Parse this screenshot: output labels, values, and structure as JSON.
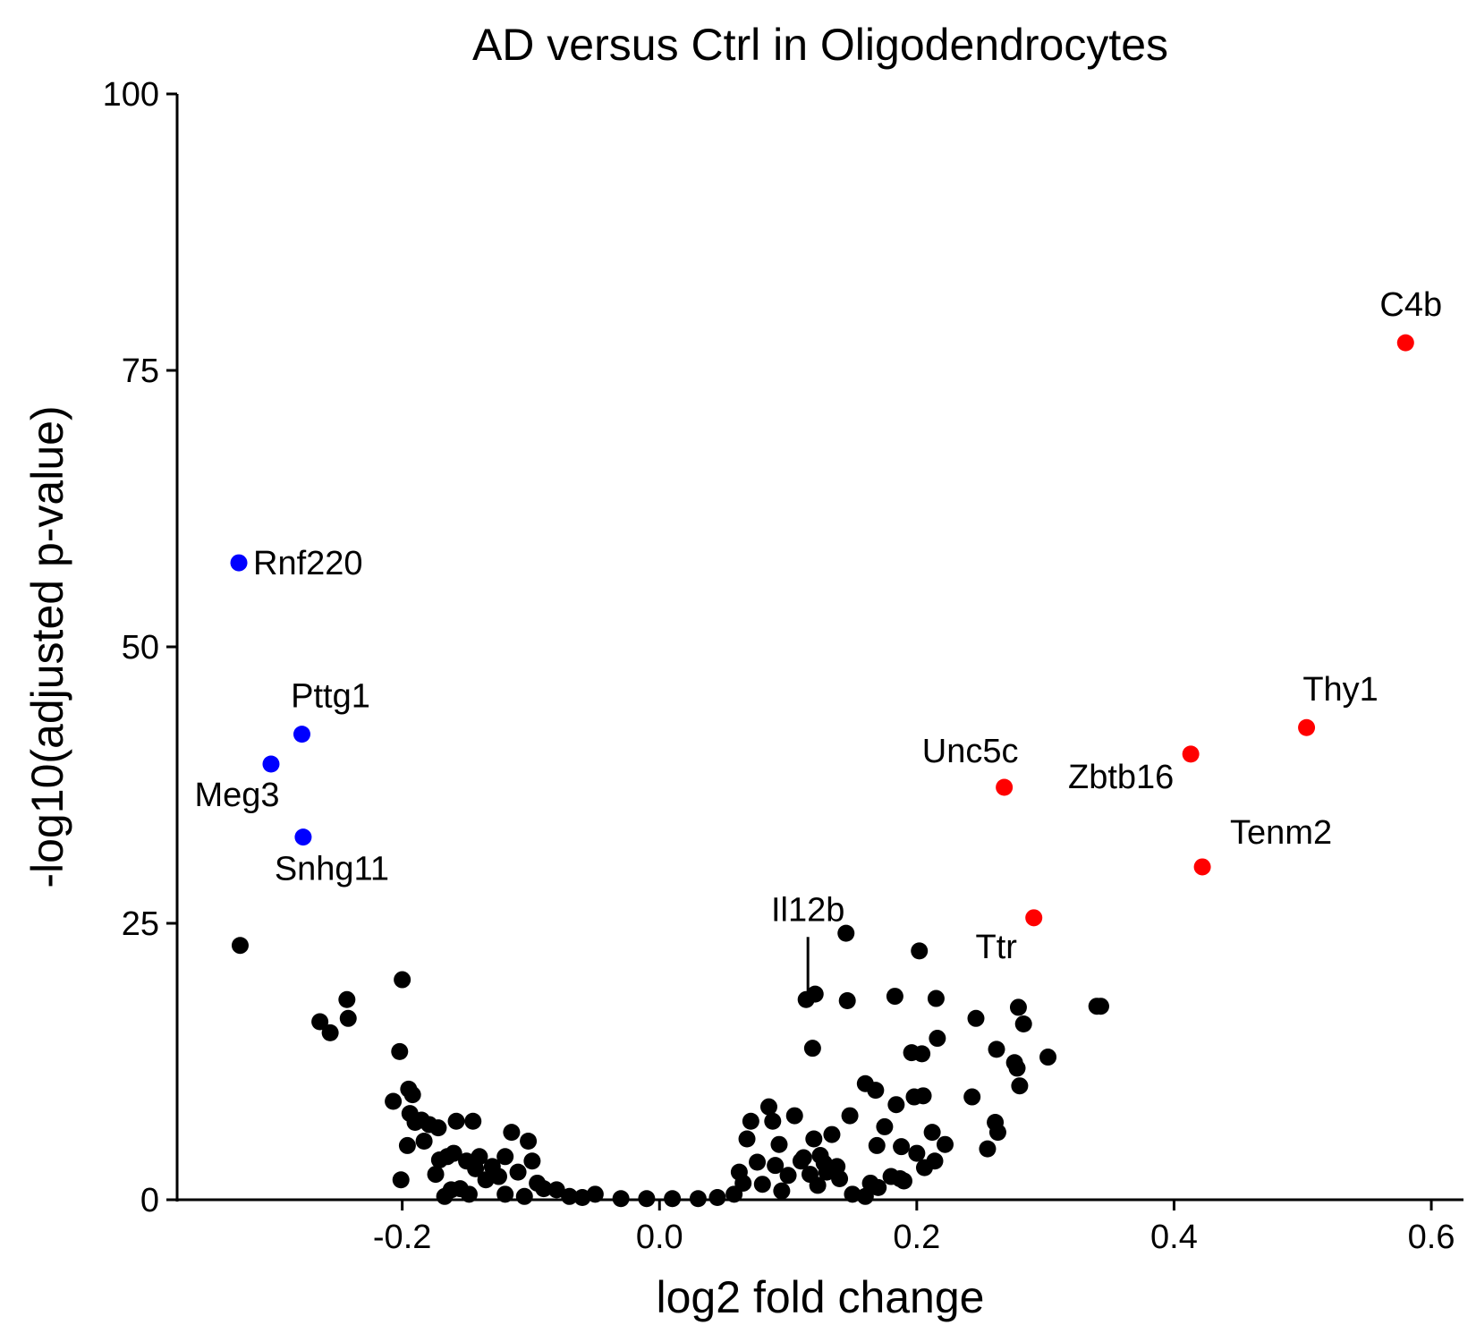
{
  "chart_data": {
    "type": "scatter",
    "title": "AD versus Ctrl in Oligodendrocytes",
    "xlabel": "log2 fold change",
    "ylabel": "-log10(adjusted p-value)",
    "xlim": [
      -0.375,
      0.625
    ],
    "ylim": [
      0,
      100
    ],
    "x_ticks": [
      -0.2,
      0.0,
      0.2,
      0.4,
      0.6
    ],
    "x_tick_labels": [
      "-0.2",
      "0.0",
      "0.2",
      "0.4",
      "0.6"
    ],
    "y_ticks": [
      0,
      25,
      50,
      75,
      100
    ],
    "y_tick_labels": [
      "0",
      "25",
      "50",
      "75",
      "100"
    ],
    "grid": false,
    "legend": "none",
    "colors": {
      "up": "#ff0000",
      "down": "#0000ff",
      "ns": "#000000"
    },
    "labeled_points": [
      {
        "label": "C4b",
        "x": 0.58,
        "y": 77.5,
        "group": "up"
      },
      {
        "label": "Thy1",
        "x": 0.503,
        "y": 42.7,
        "group": "up"
      },
      {
        "label": "Zbtb16",
        "x": 0.413,
        "y": 40.3,
        "group": "up"
      },
      {
        "label": "Unc5c",
        "x": 0.268,
        "y": 37.3,
        "group": "up"
      },
      {
        "label": "Tenm2",
        "x": 0.422,
        "y": 30.1,
        "group": "up"
      },
      {
        "label": "Ttr",
        "x": 0.291,
        "y": 25.5,
        "group": "up"
      },
      {
        "label": "Rnf220",
        "x": -0.327,
        "y": 57.6,
        "group": "down"
      },
      {
        "label": "Pttg1",
        "x": -0.278,
        "y": 42.1,
        "group": "down"
      },
      {
        "label": "Meg3",
        "x": -0.302,
        "y": 39.4,
        "group": "down"
      },
      {
        "label": "Snhg11",
        "x": -0.277,
        "y": 32.8,
        "group": "down"
      },
      {
        "label": "Il12b",
        "x": 0.114,
        "y": 18.1,
        "group": "ns"
      }
    ],
    "points": [
      [
        -0.326,
        23.0
      ],
      [
        -0.264,
        16.1
      ],
      [
        -0.256,
        15.1
      ],
      [
        -0.243,
        18.1
      ],
      [
        -0.242,
        16.4
      ],
      [
        -0.2,
        19.9
      ],
      [
        -0.202,
        13.4
      ],
      [
        -0.195,
        10.0
      ],
      [
        -0.192,
        9.5
      ],
      [
        -0.207,
        8.9
      ],
      [
        -0.194,
        7.8
      ],
      [
        -0.185,
        7.2
      ],
      [
        -0.179,
        6.8
      ],
      [
        -0.172,
        6.5
      ],
      [
        -0.19,
        7.0
      ],
      [
        -0.196,
        4.9
      ],
      [
        -0.183,
        5.3
      ],
      [
        -0.201,
        1.8
      ],
      [
        -0.174,
        2.3
      ],
      [
        -0.171,
        3.6
      ],
      [
        -0.165,
        3.9
      ],
      [
        -0.16,
        4.2
      ],
      [
        -0.158,
        7.1
      ],
      [
        -0.15,
        3.5
      ],
      [
        -0.145,
        7.1
      ],
      [
        -0.143,
        2.8
      ],
      [
        -0.14,
        3.9
      ],
      [
        -0.135,
        1.8
      ],
      [
        -0.13,
        3.0
      ],
      [
        -0.125,
        2.1
      ],
      [
        -0.12,
        3.9
      ],
      [
        -0.115,
        6.1
      ],
      [
        -0.11,
        2.5
      ],
      [
        -0.102,
        5.3
      ],
      [
        -0.099,
        3.5
      ],
      [
        -0.095,
        1.5
      ],
      [
        -0.09,
        1.0
      ],
      [
        -0.08,
        0.9
      ],
      [
        -0.07,
        0.3
      ],
      [
        -0.06,
        0.2
      ],
      [
        -0.05,
        0.5
      ],
      [
        -0.155,
        1.0
      ],
      [
        -0.148,
        0.5
      ],
      [
        -0.162,
        0.9
      ],
      [
        -0.167,
        0.3
      ],
      [
        -0.12,
        0.5
      ],
      [
        -0.105,
        0.3
      ],
      [
        -0.03,
        0.1
      ],
      [
        -0.01,
        0.1
      ],
      [
        0.01,
        0.1
      ],
      [
        0.03,
        0.1
      ],
      [
        0.045,
        0.2
      ],
      [
        0.058,
        0.5
      ],
      [
        0.065,
        1.5
      ],
      [
        0.062,
        2.5
      ],
      [
        0.068,
        5.5
      ],
      [
        0.071,
        7.1
      ],
      [
        0.076,
        3.4
      ],
      [
        0.08,
        1.4
      ],
      [
        0.085,
        8.4
      ],
      [
        0.088,
        7.1
      ],
      [
        0.09,
        3.1
      ],
      [
        0.093,
        5.0
      ],
      [
        0.1,
        2.2
      ],
      [
        0.105,
        7.6
      ],
      [
        0.11,
        3.5
      ],
      [
        0.112,
        3.8
      ],
      [
        0.117,
        2.3
      ],
      [
        0.12,
        5.5
      ],
      [
        0.123,
        1.3
      ],
      [
        0.125,
        4.0
      ],
      [
        0.13,
        2.5
      ],
      [
        0.134,
        5.9
      ],
      [
        0.138,
        3.0
      ],
      [
        0.145,
        24.1
      ],
      [
        0.146,
        18.0
      ],
      [
        0.148,
        7.6
      ],
      [
        0.15,
        0.5
      ],
      [
        0.16,
        10.5
      ],
      [
        0.168,
        9.9
      ],
      [
        0.17,
        1.1
      ],
      [
        0.175,
        6.6
      ],
      [
        0.18,
        2.1
      ],
      [
        0.183,
        18.4
      ],
      [
        0.184,
        8.6
      ],
      [
        0.188,
        4.8
      ],
      [
        0.19,
        1.7
      ],
      [
        0.196,
        13.3
      ],
      [
        0.198,
        9.3
      ],
      [
        0.2,
        4.2
      ],
      [
        0.204,
        13.2
      ],
      [
        0.205,
        9.4
      ],
      [
        0.202,
        22.5
      ],
      [
        0.206,
        2.9
      ],
      [
        0.212,
        6.1
      ],
      [
        0.214,
        3.5
      ],
      [
        0.215,
        18.2
      ],
      [
        0.216,
        14.6
      ],
      [
        0.222,
        5.0
      ],
      [
        0.169,
        4.9
      ],
      [
        0.164,
        1.5
      ],
      [
        0.187,
        1.9
      ],
      [
        0.121,
        18.6
      ],
      [
        0.119,
        13.7
      ],
      [
        0.243,
        9.3
      ],
      [
        0.246,
        16.4
      ],
      [
        0.255,
        4.6
      ],
      [
        0.261,
        7.0
      ],
      [
        0.262,
        13.6
      ],
      [
        0.263,
        6.1
      ],
      [
        0.276,
        12.4
      ],
      [
        0.278,
        11.9
      ],
      [
        0.28,
        10.3
      ],
      [
        0.279,
        17.4
      ],
      [
        0.283,
        15.9
      ],
      [
        0.302,
        12.9
      ],
      [
        0.34,
        17.5
      ],
      [
        0.343,
        17.5
      ],
      [
        0.16,
        0.3
      ],
      [
        0.14,
        1.9
      ],
      [
        0.095,
        0.8
      ],
      [
        0.128,
        3.3
      ]
    ]
  }
}
